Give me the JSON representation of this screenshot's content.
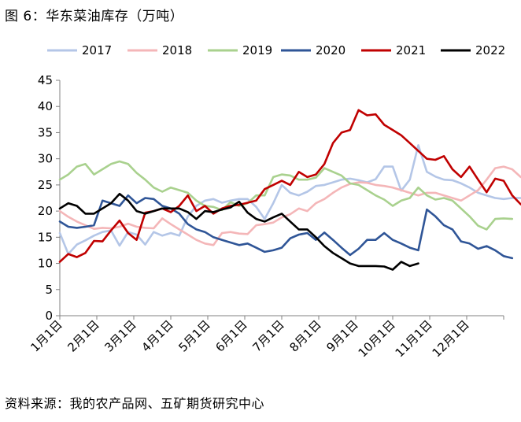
{
  "figure": {
    "title": "图 6：华东菜油库存（万吨）",
    "source": "资料来源：我的农产品网、五矿期货研究中心"
  },
  "chart_data": {
    "type": "line",
    "title": "",
    "xlabel": "",
    "ylabel": "",
    "x_ticks": [
      "1月1日",
      "2月1日",
      "3月1日",
      "4月1日",
      "5月1日",
      "6月1日",
      "7月1日",
      "8月1日",
      "9月1日",
      "10月1日",
      "11月1日",
      "12月1日"
    ],
    "ylim": [
      0,
      45
    ],
    "y_ticks": [
      0,
      5,
      10,
      15,
      20,
      25,
      30,
      35,
      40,
      45
    ],
    "grid": false,
    "legend_position": "top",
    "series": [
      {
        "name": "2017",
        "color": "#b4c6e7",
        "values": [
          15.8,
          11.8,
          13.6,
          14.4,
          15.3,
          16.0,
          16.3,
          13.4,
          16.0,
          15.5,
          13.6,
          16.0,
          15.3,
          15.8,
          15.3,
          19.0,
          21.0,
          22.0,
          22.3,
          21.6,
          22.0,
          22.3,
          22.3,
          20.8,
          18.5,
          21.5,
          25.0,
          23.5,
          23.0,
          23.7,
          24.8,
          25.0,
          25.5,
          26.0,
          26.2,
          25.9,
          25.5,
          26.1,
          28.5,
          28.5,
          23.9,
          26.0,
          32.6,
          27.5,
          26.6,
          26.0,
          25.9,
          25.3,
          24.5,
          23.5,
          23.0,
          22.5,
          22.3,
          22.5,
          22.5,
          22.0,
          22.5,
          21.5,
          20.5
        ]
      },
      {
        "name": "2018",
        "color": "#f4b6b8",
        "values": [
          20.0,
          18.9,
          18.0,
          17.3,
          16.6,
          16.8,
          16.7,
          17.0,
          17.6,
          17.0,
          16.8,
          16.7,
          18.6,
          17.5,
          16.5,
          15.5,
          14.5,
          13.8,
          13.5,
          15.8,
          16.0,
          15.7,
          15.6,
          17.3,
          17.5,
          17.8,
          18.8,
          19.4,
          20.5,
          20.0,
          21.5,
          22.3,
          23.5,
          24.5,
          25.2,
          25.5,
          25.4,
          25.0,
          24.8,
          24.5,
          24.0,
          23.5,
          23.0,
          23.5,
          23.5,
          23.0,
          22.5,
          22.0,
          23.0,
          24.0,
          26.0,
          28.2,
          28.5,
          28.0,
          26.5,
          26.0,
          28.8,
          27.3
        ]
      },
      {
        "name": "2019",
        "color": "#a9d18e",
        "values": [
          26.0,
          27.0,
          28.5,
          29.0,
          27.0,
          28.0,
          29.0,
          29.5,
          29.0,
          27.3,
          26.0,
          24.5,
          23.7,
          24.5,
          24.0,
          23.5,
          22.0,
          21.0,
          20.8,
          20.2,
          21.7,
          21.0,
          21.5,
          23.0,
          23.0,
          26.5,
          27.0,
          26.8,
          26.0,
          26.0,
          26.4,
          28.2,
          27.5,
          26.8,
          25.3,
          25.0,
          24.0,
          23.0,
          22.2,
          21.0,
          22.0,
          22.5,
          24.5,
          23.0,
          22.2,
          22.5,
          22.0,
          20.5,
          19.0,
          17.2,
          16.5,
          18.5,
          18.6,
          18.5
        ]
      },
      {
        "name": "2020",
        "color": "#2f5597",
        "values": [
          18.0,
          17.0,
          16.8,
          17.0,
          17.3,
          22.0,
          21.5,
          21.0,
          23.0,
          21.5,
          22.5,
          22.3,
          21.0,
          20.5,
          19.5,
          17.5,
          16.5,
          16.0,
          15.0,
          14.5,
          14.0,
          13.5,
          13.8,
          13.0,
          12.2,
          12.5,
          13.0,
          14.8,
          15.5,
          15.8,
          14.5,
          15.9,
          14.5,
          13.0,
          11.6,
          12.8,
          14.5,
          14.5,
          15.8,
          14.5,
          13.8,
          13.0,
          12.5,
          20.3,
          19.0,
          17.3,
          16.5,
          14.2,
          13.8,
          12.8,
          13.3,
          12.5,
          11.4,
          11.0
        ]
      },
      {
        "name": "2021",
        "color": "#c00000",
        "values": [
          10.3,
          11.8,
          11.2,
          12.0,
          14.3,
          14.2,
          16.3,
          18.2,
          15.8,
          14.5,
          19.7,
          20.0,
          20.5,
          19.8,
          21.0,
          23.0,
          20.0,
          21.0,
          19.5,
          20.5,
          21.0,
          21.2,
          21.6,
          22.0,
          24.2,
          25.0,
          25.8,
          25.0,
          27.5,
          26.5,
          27.0,
          29.0,
          33.0,
          35.0,
          35.5,
          39.3,
          38.3,
          38.5,
          36.5,
          35.5,
          34.5,
          33.0,
          31.5,
          30.0,
          29.8,
          30.5,
          28.0,
          26.5,
          28.5,
          26.0,
          23.6,
          26.2,
          25.8,
          23.0,
          21.3
        ]
      },
      {
        "name": "2022",
        "color": "#000000",
        "values": [
          20.5,
          21.5,
          21.0,
          19.5,
          19.5,
          20.5,
          21.5,
          23.3,
          22.0,
          20.0,
          19.5,
          20.0,
          20.5,
          20.5,
          20.5,
          19.8,
          18.5,
          20.0,
          19.8,
          20.3,
          20.7,
          21.8,
          19.7,
          18.5,
          18.0,
          18.8,
          19.5,
          18.0,
          16.5,
          16.5,
          15.0,
          13.3,
          12.0,
          11.0,
          10.0,
          9.5,
          9.5,
          9.5,
          9.4,
          8.8,
          10.3,
          9.5,
          10.0
        ]
      }
    ]
  }
}
